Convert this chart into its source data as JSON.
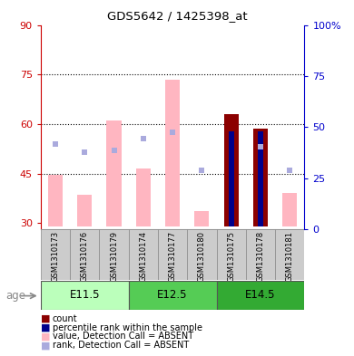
{
  "title": "GDS5642 / 1425398_at",
  "samples": [
    "GSM1310173",
    "GSM1310176",
    "GSM1310179",
    "GSM1310174",
    "GSM1310177",
    "GSM1310180",
    "GSM1310175",
    "GSM1310178",
    "GSM1310181"
  ],
  "groups": [
    {
      "label": "E11.5",
      "start": 0,
      "end": 3
    },
    {
      "label": "E12.5",
      "start": 3,
      "end": 6
    },
    {
      "label": "E14.5",
      "start": 6,
      "end": 9
    }
  ],
  "ylim_left": [
    28,
    90
  ],
  "ylim_right": [
    0,
    100
  ],
  "yticks_left": [
    30,
    45,
    60,
    75,
    90
  ],
  "yticks_right": [
    0,
    25,
    50,
    75,
    100
  ],
  "ytick_labels_right": [
    "0",
    "25",
    "50",
    "75",
    "100%"
  ],
  "value_absent": [
    44.5,
    38.5,
    61.0,
    46.5,
    73.5,
    33.5,
    null,
    null,
    39.0
  ],
  "count_value": [
    null,
    null,
    null,
    null,
    null,
    null,
    63.0,
    58.5,
    null
  ],
  "percentile_rank_left": [
    null,
    null,
    null,
    null,
    null,
    null,
    57.8,
    57.8,
    null
  ],
  "rank_absent_markers": [
    54.0,
    51.5,
    52.0,
    55.5,
    57.5,
    46.0,
    null,
    53.0,
    46.0
  ],
  "bar_base": 29,
  "absent_bar_color": "#FFB6C1",
  "count_bar_color": "#8B0000",
  "percentile_bar_color": "#00008B",
  "rank_absent_marker_color": "#AAAADD",
  "label_color_left": "#CC0000",
  "label_color_right": "#0000CC",
  "sample_bg_color": "#CCCCCC",
  "group_colors": [
    "#BBFFBB",
    "#55CC55",
    "#33AA33"
  ],
  "grid_dotted_at": [
    45,
    60,
    75
  ],
  "bar_width": 0.5
}
